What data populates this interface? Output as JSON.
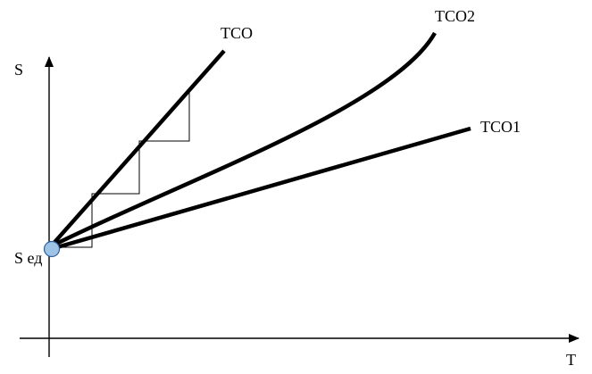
{
  "axes": {
    "y_label": "S",
    "x_label": "T",
    "origin_label": "S ед"
  },
  "curves": [
    {
      "id": "tco",
      "label": "ТСО"
    },
    {
      "id": "tco2",
      "label": "ТСО2"
    },
    {
      "id": "tco1",
      "label": "ТСО1"
    }
  ],
  "colors": {
    "line": "#000000",
    "origin_marker_fill": "#9dc3e6",
    "origin_marker_stroke": "#2e5f9e"
  }
}
